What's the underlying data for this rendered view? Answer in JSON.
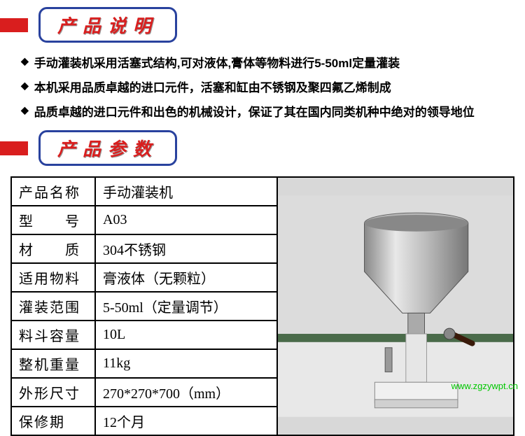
{
  "section1": {
    "title": "产品说明",
    "bullets": [
      "手动灌装机采用活塞式结构,可对液体,膏体等物料进行5-50ml定量灌装",
      "本机采用品质卓越的进口元件，活塞和缸由不锈钢及聚四氟乙烯制成",
      "品质卓越的进口元件和出色的机械设计，保证了其在国内同类机种中绝对的领导地位"
    ]
  },
  "section2": {
    "title": "产品参数"
  },
  "params": {
    "rows": [
      {
        "label": "产品名称",
        "value": "手动灌装机",
        "spaced": false
      },
      {
        "label": "型　　号",
        "value": "A03",
        "spaced": false
      },
      {
        "label": "材　　质",
        "value": "304不锈钢",
        "spaced": false
      },
      {
        "label": "适用物料",
        "value": "膏液体（无颗粒）",
        "spaced": false
      },
      {
        "label": "灌装范围",
        "value": "5-50ml（定量调节）",
        "spaced": false
      },
      {
        "label": "料斗容量",
        "value": "10L",
        "spaced": false
      },
      {
        "label": "整机重量",
        "value": "11kg",
        "spaced": false
      },
      {
        "label": "外形尺寸",
        "value": "270*270*700（mm）",
        "spaced": false
      },
      {
        "label": "保修期",
        "value": "12个月",
        "spaced": false
      }
    ]
  },
  "watermark": "www.zgzywpt.cn",
  "colors": {
    "red": "#d91e1e",
    "blue_border": "#29429e",
    "green_watermark": "#00c800",
    "image_bg": "#d8d8d8"
  }
}
